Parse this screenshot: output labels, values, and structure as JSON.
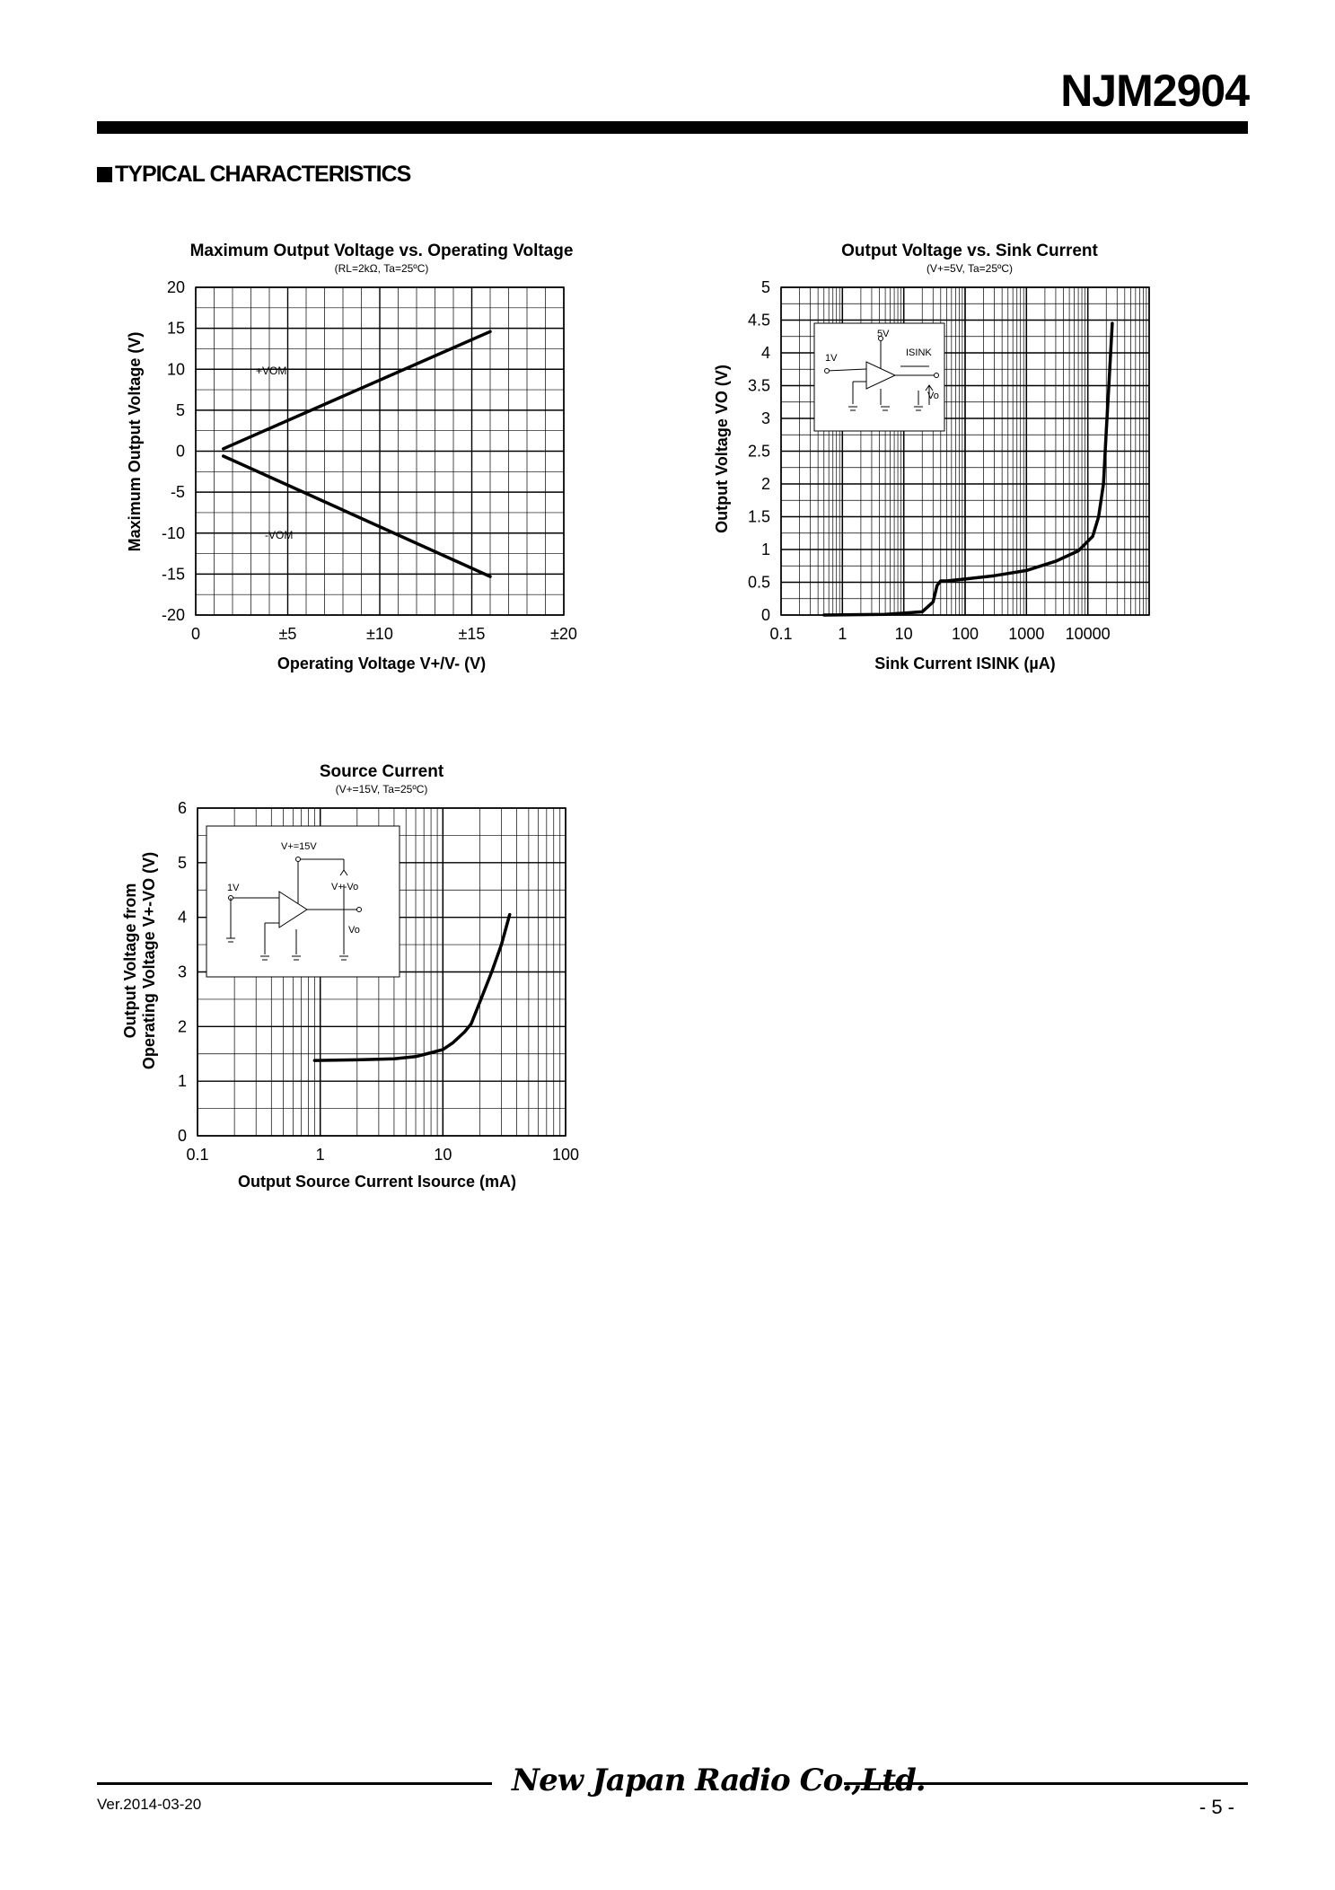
{
  "header": {
    "part_number": "NJM2904",
    "section_title": "TYPICAL CHARACTERISTICS"
  },
  "chart_data": [
    {
      "id": "chart1",
      "type": "line",
      "title": "Maximum Output Voltage vs. Operating Voltage",
      "subtitle": "(RL=2kΩ, Ta=25ºC)",
      "xlabel": "Operating Voltage V+/V- (V)",
      "ylabel": "Maximum Output Voltage (V)",
      "xlim": [
        0,
        20
      ],
      "ylim": [
        -20,
        20
      ],
      "x_ticks": [
        0,
        5,
        10,
        15,
        20
      ],
      "x_tick_labels": [
        "0",
        "±5",
        "±10",
        "±15",
        "±20"
      ],
      "y_ticks": [
        20,
        15,
        10,
        5,
        0,
        -5,
        -10,
        -15,
        -20
      ],
      "y_tick_labels": [
        "20",
        "15",
        "10",
        "5",
        "0",
        "-5",
        "-10",
        "-15",
        "-20"
      ],
      "annotations": [
        "+VOM",
        "-VOM"
      ],
      "series": [
        {
          "name": "+VOM",
          "x": [
            1.5,
            16
          ],
          "y": [
            0.3,
            14.6
          ]
        },
        {
          "name": "-VOM",
          "x": [
            1.5,
            16
          ],
          "y": [
            -0.6,
            -15.3
          ]
        }
      ]
    },
    {
      "id": "chart2",
      "type": "line",
      "title": "Output Voltage vs. Sink Current",
      "subtitle": "(V+=5V, Ta=25ºC)",
      "xlabel": "Sink Current ISINK (µA)",
      "ylabel": "Output Voltage VO (V)",
      "xscale": "log",
      "xlim": [
        0.1,
        100000
      ],
      "ylim": [
        0,
        5
      ],
      "x_ticks": [
        0.1,
        1,
        10,
        100,
        1000,
        10000
      ],
      "x_tick_labels": [
        "0.1",
        "1",
        "10",
        "100",
        "1000",
        "10000"
      ],
      "y_ticks": [
        5,
        4.5,
        4,
        3.5,
        3,
        2.5,
        2,
        1.5,
        1,
        0.5,
        0
      ],
      "y_tick_labels": [
        "5",
        "4.5",
        "4",
        "3.5",
        "3",
        "2.5",
        "2",
        "1.5",
        "1",
        "0.5",
        "0"
      ],
      "inset_labels": [
        "5V",
        "1V",
        "ISINK",
        "Vo"
      ],
      "series": [
        {
          "name": "VO",
          "x": [
            0.5,
            5,
            20,
            30,
            35,
            40,
            50,
            100,
            300,
            1000,
            3000,
            7000,
            12000,
            15000,
            18000,
            20000,
            22000,
            25000
          ],
          "y": [
            0.0,
            0.01,
            0.05,
            0.2,
            0.45,
            0.52,
            0.52,
            0.55,
            0.6,
            0.68,
            0.82,
            0.98,
            1.2,
            1.5,
            2.0,
            2.8,
            3.5,
            4.45
          ]
        }
      ]
    },
    {
      "id": "chart3",
      "type": "line",
      "title": "Source Current",
      "subtitle": "(V+=15V, Ta=25ºC)",
      "xlabel": "Output Source Current Isource (mA)",
      "ylabel_line1": "Output Voltage from",
      "ylabel_line2": "Operating Voltage V+-VO (V)",
      "xscale": "log",
      "xlim": [
        0.1,
        100
      ],
      "ylim": [
        0,
        6
      ],
      "x_ticks": [
        0.1,
        1,
        10,
        100
      ],
      "x_tick_labels": [
        "0.1",
        "1",
        "10",
        "100"
      ],
      "y_ticks": [
        6,
        5,
        4,
        3,
        2,
        1,
        0
      ],
      "y_tick_labels": [
        "6",
        "5",
        "4",
        "3",
        "2",
        "1",
        "0"
      ],
      "inset_labels": [
        "V+=15V",
        "1V",
        "V+-Vo",
        "Vo"
      ],
      "series": [
        {
          "name": "V+-VO",
          "x": [
            0.9,
            2,
            4,
            6,
            8,
            10,
            12,
            15,
            17,
            20,
            25,
            30,
            35
          ],
          "y": [
            1.38,
            1.39,
            1.41,
            1.45,
            1.52,
            1.58,
            1.7,
            1.9,
            2.05,
            2.45,
            3.0,
            3.5,
            4.05
          ]
        }
      ]
    }
  ],
  "footer": {
    "company": "New Japan Radio Co.,Ltd.",
    "version": "Ver.2014-03-20",
    "page": "- 5 -"
  }
}
